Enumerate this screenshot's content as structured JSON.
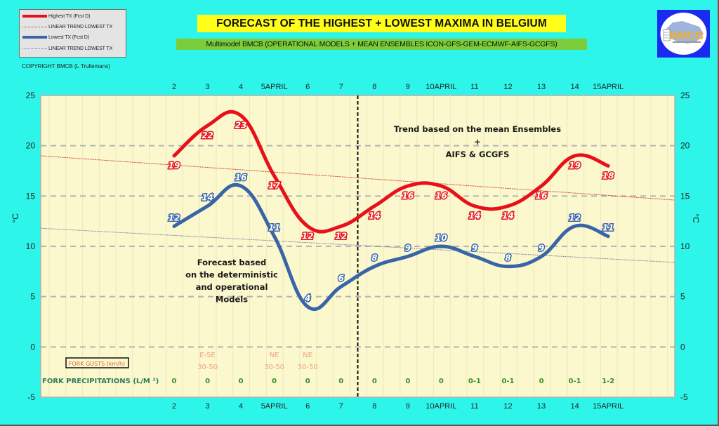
{
  "title": "FORECAST OF THE HIGHEST + LOWEST MAXIMA IN BELGIUM",
  "subtitle": "Multimodel BMCB (OPERATIONAL MODELS + MEAN ENSEMBLES  ICON-GFS-GEM-ECMWF-AIFS-GCGFS)",
  "copyright": "COPYRIGHT BMCB (L Trullemans)",
  "logo_text": "BMCB",
  "legend": [
    {
      "label": "Highest TX (Fcst D)",
      "style": "thick",
      "color": "#e8101a"
    },
    {
      "label": "LINEAR TREND LOWEST  TX",
      "style": "dotted",
      "color": "#d0342c"
    },
    {
      "label": "Lowest TX (Fcst D)",
      "style": "thick",
      "color": "#3a64a8"
    },
    {
      "label": "LINEAR TREND LOWEST TX",
      "style": "dotted",
      "color": "#7080a8"
    }
  ],
  "colors": {
    "background": "#2ef5ea",
    "plot_bg": "#faf8cc",
    "highest": "#e8101a",
    "lowest": "#3a64a8",
    "grid": "#b4b4b4"
  },
  "chart_data": {
    "type": "line",
    "title": "FORECAST OF THE HIGHEST + LOWEST MAXIMA IN BELGIUM",
    "xlabel": "",
    "ylabel": "°C",
    "ylabel_right": "°C",
    "ylim": [
      -5,
      25
    ],
    "yticks": [
      -5,
      0,
      5,
      10,
      15,
      20,
      25
    ],
    "grid": "horizontal dashed",
    "legend_position": "top-left",
    "categories": [
      "2",
      "3",
      "4",
      "5APRIL",
      "6",
      "7",
      "8",
      "9",
      "10APRIL",
      "11",
      "12",
      "13",
      "14",
      "15APRIL"
    ],
    "x_domain": [
      -3.95,
      15.1
    ],
    "x_day_numbers": [
      2,
      3,
      4,
      5,
      6,
      7,
      8,
      9,
      10,
      11,
      12,
      13,
      14,
      15
    ],
    "series": [
      {
        "name": "Highest TX (Fcst D)",
        "color": "#e8101a",
        "values": [
          19,
          22,
          23,
          17,
          12,
          12,
          14,
          16,
          16,
          14,
          14,
          16,
          19,
          18
        ]
      },
      {
        "name": "Lowest TX (Fcst D)",
        "color": "#3a64a8",
        "values": [
          12,
          14,
          16,
          11,
          4,
          6,
          8,
          9,
          10,
          9,
          8,
          9,
          12,
          11
        ]
      }
    ],
    "trend_lines": [
      {
        "name": "LINEAR TREND LOWEST  TX",
        "color": "#d0342c",
        "start_value": 19.0,
        "end_value": 14.6
      },
      {
        "name": "LINEAR TREND LOWEST TX",
        "color": "#7080a8",
        "start_value": 11.8,
        "end_value": 8.4
      }
    ],
    "divider_between_days": [
      7,
      8
    ],
    "annotations": [
      {
        "id": "forecast-deterministic",
        "lines": [
          "Forecast based",
          "on the deterministic",
          "and operational",
          "Models"
        ]
      },
      {
        "id": "trend-ensembles",
        "lines": [
          "Trend based on the mean Ensembles",
          "+",
          "AIFS & GCGFS"
        ]
      }
    ],
    "gusts_label": "FORK GUSTS (km/h)",
    "gusts": [
      {
        "day": "3",
        "dir": "E-SE",
        "speed": "30-50"
      },
      {
        "day": "5APRIL",
        "dir": "NE",
        "speed": "30-50"
      },
      {
        "day": "6",
        "dir": "NE",
        "speed": "30-50"
      }
    ],
    "precip_label": "FORK PRECIPITATIONS (L/M ²)",
    "precipitation": [
      "0",
      "0",
      "0",
      "0",
      "0",
      "0",
      "0",
      "0",
      "0",
      "0-1",
      "0-1",
      "0",
      "0-1",
      "1-2"
    ]
  }
}
